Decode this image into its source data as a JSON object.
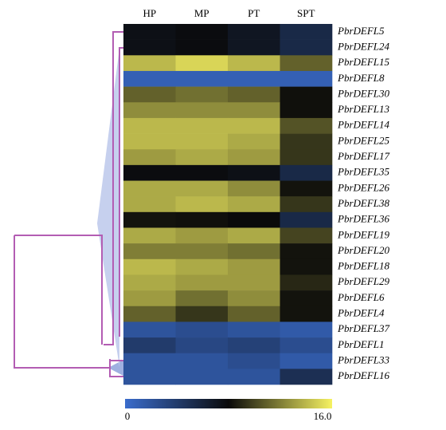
{
  "chart_data": {
    "type": "heatmap",
    "x": [
      "HP",
      "MP",
      "PT",
      "SPT"
    ],
    "y": [
      "PbrDEFL5",
      "PbrDEFL24",
      "PbrDEFL15",
      "PbrDEFL8",
      "PbrDEFL30",
      "PbrDEFL13",
      "PbrDEFL14",
      "PbrDEFL25",
      "PbrDEFL17",
      "PbrDEFL35",
      "PbrDEFL26",
      "PbrDEFL38",
      "PbrDEFL36",
      "PbrDEFL19",
      "PbrDEFL20",
      "PbrDEFL18",
      "PbrDEFL29",
      "PbrDEFL6",
      "PbrDEFL4",
      "PbrDEFL37",
      "PbrDEFL1",
      "PbrDEFL33",
      "PbrDEFL16"
    ],
    "values": [
      [
        7.5,
        7.8,
        7,
        5.5
      ],
      [
        7.5,
        7.8,
        7,
        5.5
      ],
      [
        14,
        15,
        14,
        11
      ],
      [
        1,
        1,
        1,
        1
      ],
      [
        11,
        11.5,
        11,
        8.2
      ],
      [
        12.5,
        12.5,
        12.5,
        8.2
      ],
      [
        14,
        14,
        14,
        10.5
      ],
      [
        14,
        14,
        13.5,
        9.5
      ],
      [
        13,
        13.5,
        13,
        9.5
      ],
      [
        7.8,
        7.8,
        7.5,
        5.5
      ],
      [
        13.5,
        13.5,
        12.5,
        8.3
      ],
      [
        13.5,
        14,
        13.5,
        9.5
      ],
      [
        8.3,
        8.2,
        8,
        5.5
      ],
      [
        13.5,
        13,
        13.5,
        10
      ],
      [
        12,
        12,
        11.5,
        8.3
      ],
      [
        14,
        13.5,
        13,
        8.3
      ],
      [
        13.5,
        13,
        13,
        9
      ],
      [
        13,
        11.5,
        12.5,
        8.3
      ],
      [
        11,
        9.5,
        11,
        8.3
      ],
      [
        2,
        2.5,
        2,
        1.5
      ],
      [
        4,
        3,
        3.5,
        2.5
      ],
      [
        2,
        2,
        2.5,
        1.5
      ],
      [
        2,
        2,
        2,
        5
      ]
    ],
    "clim": [
      0,
      16
    ],
    "colors": [
      "#3a6ccc",
      "#0a0a0a",
      "#f6f262"
    ],
    "cticks": [
      0,
      {
        "value": 16,
        "label": "16.0"
      }
    ]
  }
}
